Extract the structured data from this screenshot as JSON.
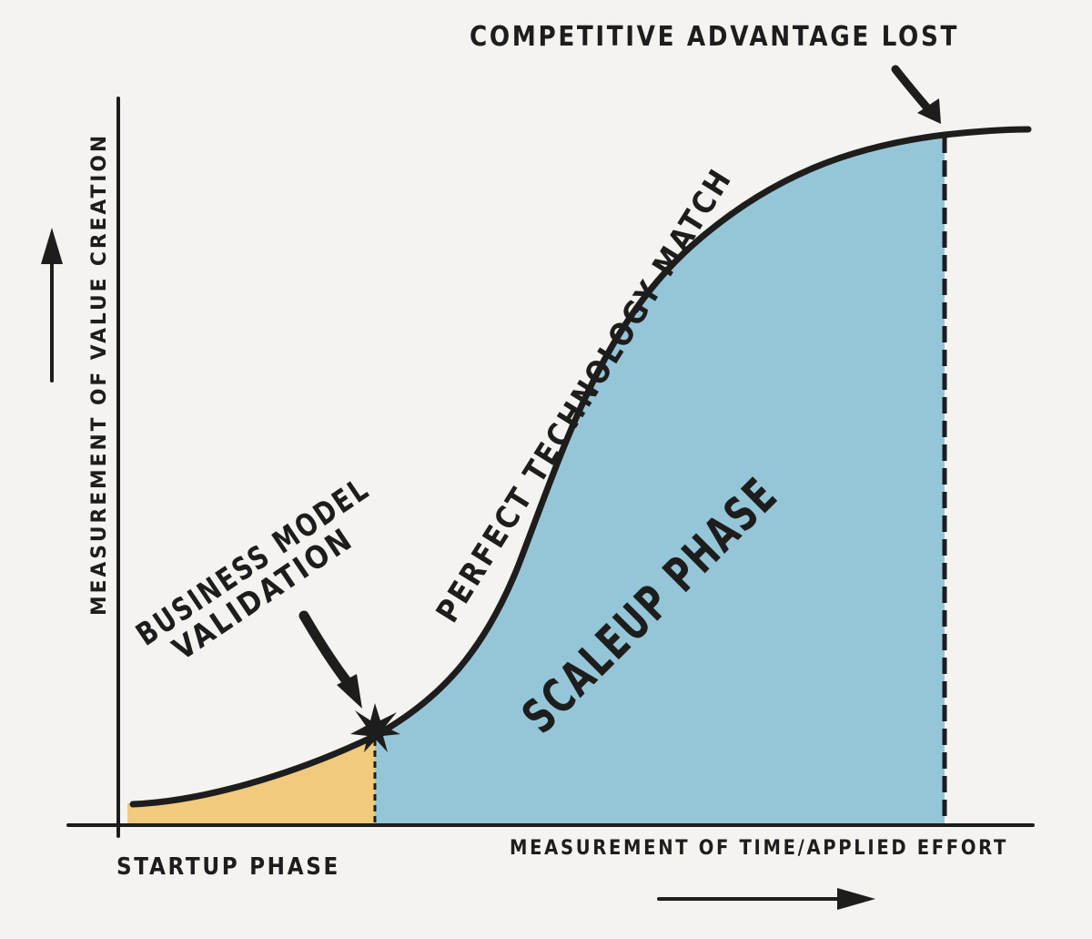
{
  "title": "",
  "colors": {
    "background": "#f5f3ef",
    "ink": "#1d1d1d",
    "startup_fill": "#f1c56e",
    "scaleup_fill": "#8fc3d6"
  },
  "labels": {
    "competitive_advantage": "COMPETITIVE ADVANTAGE LOST",
    "technology_match": "PERFECT TECHNOLOGY MATCH",
    "business_model_line1": "BUSINESS MODEL",
    "business_model_line2": "VALIDATION",
    "scaleup_phase": "SCALEUP PHASE",
    "startup_phase": "STARTUP PHASE",
    "x_axis": "MEASUREMENT OF TIME/APPLIED EFFORT",
    "y_axis": "MEASUREMENT OF VALUE CREATION"
  },
  "icons": {
    "validation_marker": "star-burst-icon",
    "y_direction": "arrow-up-icon",
    "x_direction": "arrow-right-icon"
  }
}
